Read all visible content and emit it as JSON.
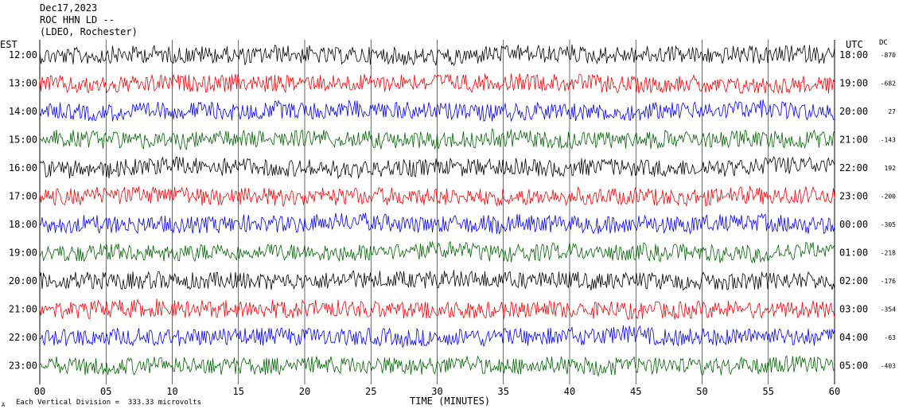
{
  "header": {
    "date": "Dec17,2023",
    "station": "ROC HHN LD --",
    "network": "(LDEO, Rochester)"
  },
  "left_axis_label": "EST",
  "right_axis_label": "UTC",
  "dc_label": "DC",
  "footer": {
    "scale_note": "Each Vertical Division =  333.33 microvolts",
    "corner_mark": "A"
  },
  "chart_data": {
    "type": "line",
    "xlabel": "TIME (MINUTES)",
    "xlim": [
      0,
      60
    ],
    "x_ticks": [
      0,
      5,
      10,
      15,
      20,
      25,
      30,
      35,
      40,
      45,
      50,
      55,
      60
    ],
    "x_tick_labels": [
      "00",
      "05",
      "10",
      "15",
      "20",
      "25",
      "30",
      "35",
      "40",
      "45",
      "50",
      "55",
      "60"
    ],
    "grid": "vertical lines every 5 minutes",
    "trace_color_cycle": [
      "#000000",
      "#ff0000",
      "#0000ff",
      "#006400"
    ],
    "rows": [
      {
        "est": "12:00",
        "utc": "18:00",
        "dc": "-870"
      },
      {
        "est": "13:00",
        "utc": "19:00",
        "dc": "-682"
      },
      {
        "est": "14:00",
        "utc": "20:00",
        "dc": "27"
      },
      {
        "est": "15:00",
        "utc": "21:00",
        "dc": "-143"
      },
      {
        "est": "16:00",
        "utc": "22:00",
        "dc": "192"
      },
      {
        "est": "17:00",
        "utc": "23:00",
        "dc": "-200"
      },
      {
        "est": "18:00",
        "utc": "00:00",
        "dc": "-305"
      },
      {
        "est": "19:00",
        "utc": "01:00",
        "dc": "-218"
      },
      {
        "est": "20:00",
        "utc": "02:00",
        "dc": "-176"
      },
      {
        "est": "21:00",
        "utc": "03:00",
        "dc": "-354"
      },
      {
        "est": "22:00",
        "utc": "04:00",
        "dc": "-63"
      },
      {
        "est": "23:00",
        "utc": "05:00",
        "dc": "-403"
      }
    ]
  }
}
